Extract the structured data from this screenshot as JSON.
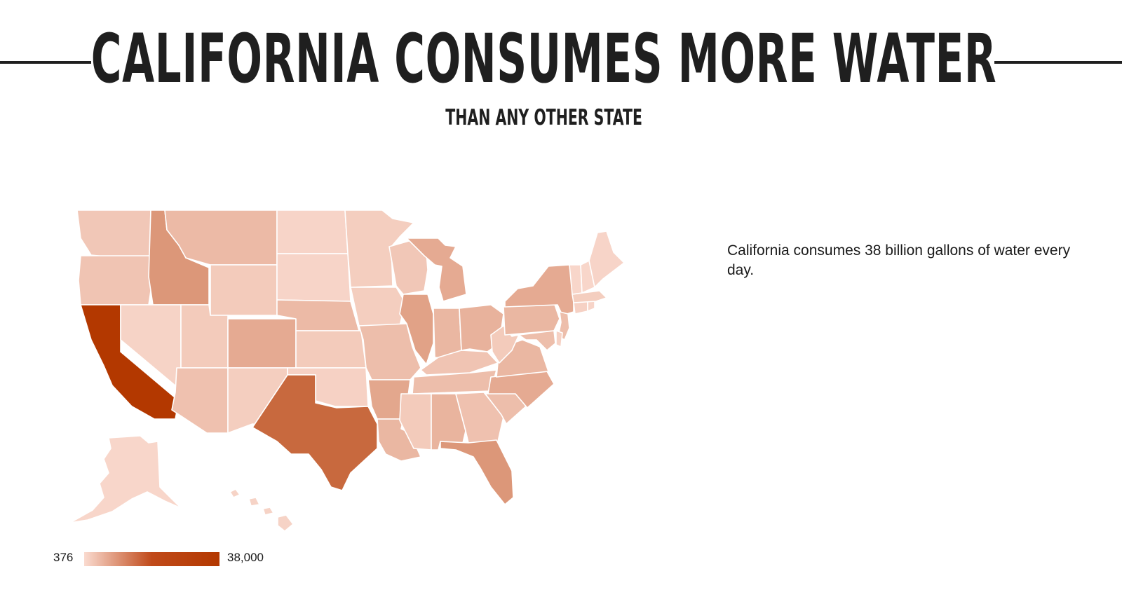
{
  "header": {
    "title": "CALIFORNIA CONSUMES MORE WATER",
    "subtitle": "THAN ANY OTHER STATE"
  },
  "caption": "California consumes 38 billion gallons of water every day.",
  "legend": {
    "min": "376",
    "max": "38,000"
  },
  "colors": {
    "scale_low": "#fadbd0",
    "scale_high": "#b33800",
    "rule": "#1f1f1f"
  },
  "chart_data": {
    "type": "choropleth",
    "scale": {
      "min": 376,
      "max": 38000
    },
    "highlighted": [
      "California"
    ],
    "states": [
      {
        "name": "Washington",
        "level": 0.12
      },
      {
        "name": "Oregon",
        "level": 0.14
      },
      {
        "name": "California",
        "level": 1.0
      },
      {
        "name": "Idaho",
        "level": 0.42
      },
      {
        "name": "Nevada",
        "level": 0.05
      },
      {
        "name": "Montana",
        "level": 0.2
      },
      {
        "name": "Wyoming",
        "level": 0.1
      },
      {
        "name": "Utah",
        "level": 0.1
      },
      {
        "name": "Arizona",
        "level": 0.16
      },
      {
        "name": "Colorado",
        "level": 0.3
      },
      {
        "name": "New Mexico",
        "level": 0.08
      },
      {
        "name": "North Dakota",
        "level": 0.04
      },
      {
        "name": "South Dakota",
        "level": 0.04
      },
      {
        "name": "Nebraska",
        "level": 0.2
      },
      {
        "name": "Kansas",
        "level": 0.1
      },
      {
        "name": "Oklahoma",
        "level": 0.06
      },
      {
        "name": "Texas",
        "level": 0.7
      },
      {
        "name": "Minnesota",
        "level": 0.08
      },
      {
        "name": "Iowa",
        "level": 0.08
      },
      {
        "name": "Missouri",
        "level": 0.18
      },
      {
        "name": "Arkansas",
        "level": 0.32
      },
      {
        "name": "Louisiana",
        "level": 0.22
      },
      {
        "name": "Wisconsin",
        "level": 0.12
      },
      {
        "name": "Illinois",
        "level": 0.35
      },
      {
        "name": "Michigan",
        "level": 0.3
      },
      {
        "name": "Indiana",
        "level": 0.22
      },
      {
        "name": "Ohio",
        "level": 0.25
      },
      {
        "name": "Kentucky",
        "level": 0.14
      },
      {
        "name": "Tennessee",
        "level": 0.18
      },
      {
        "name": "Mississippi",
        "level": 0.1
      },
      {
        "name": "Alabama",
        "level": 0.24
      },
      {
        "name": "Georgia",
        "level": 0.16
      },
      {
        "name": "Florida",
        "level": 0.42
      },
      {
        "name": "South Carolina",
        "level": 0.18
      },
      {
        "name": "North Carolina",
        "level": 0.3
      },
      {
        "name": "Virginia",
        "level": 0.22
      },
      {
        "name": "West Virginia",
        "level": 0.1
      },
      {
        "name": "Pennsylvania",
        "level": 0.22
      },
      {
        "name": "New York",
        "level": 0.3
      },
      {
        "name": "New Jersey",
        "level": 0.18
      },
      {
        "name": "Maryland",
        "level": 0.18
      },
      {
        "name": "Delaware",
        "level": 0.06
      },
      {
        "name": "Connecticut",
        "level": 0.06
      },
      {
        "name": "Rhode Island",
        "level": 0.04
      },
      {
        "name": "Massachusetts",
        "level": 0.08
      },
      {
        "name": "Vermont",
        "level": 0.03
      },
      {
        "name": "New Hampshire",
        "level": 0.03
      },
      {
        "name": "Maine",
        "level": 0.04
      },
      {
        "name": "Alaska",
        "level": 0.03
      },
      {
        "name": "Hawaii",
        "level": 0.05
      }
    ]
  }
}
